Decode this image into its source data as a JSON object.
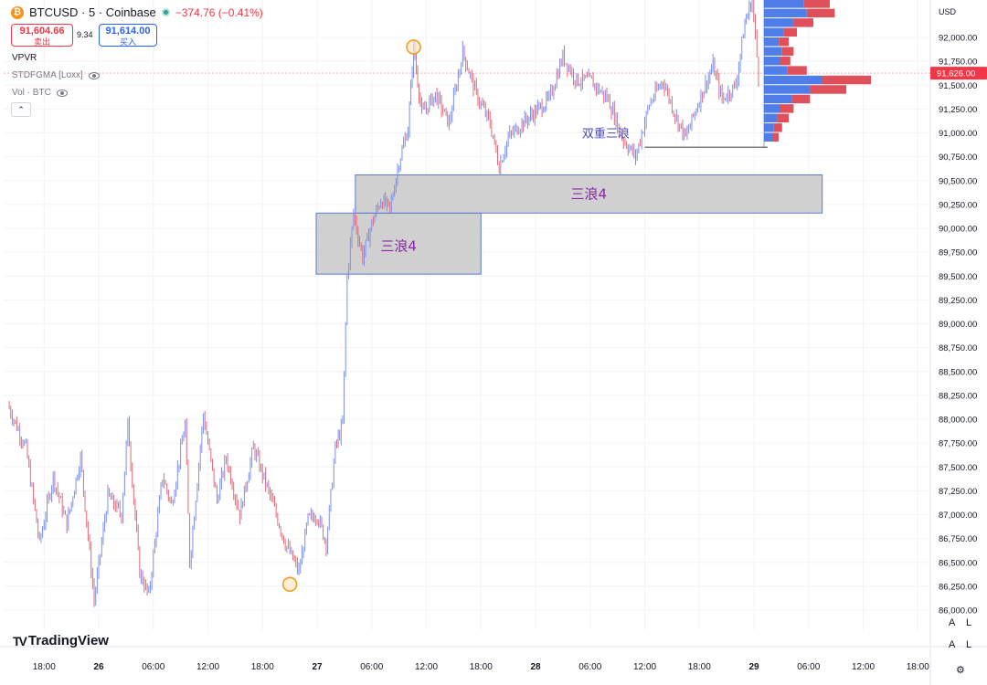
{
  "header": {
    "symbol": "BTCUSD · 5 · Coinbase",
    "coin_glyph": "₿",
    "change": "−374.76 (−0.41%)",
    "sell_price": "91,604.66",
    "sell_label": "卖出",
    "spread": "9.34",
    "buy_price": "91,614.00",
    "buy_label": "买入"
  },
  "indicators": {
    "vpvr": "VPVR",
    "stdfgma": "STDFGMA [Loxx]",
    "vol": "Vol · BTC"
  },
  "collapse_glyph": "⌃",
  "currency": "USD",
  "logo_text": "TradingView",
  "logo_glyph": "TV",
  "scale_btn_a": "A",
  "scale_btn_l": "L",
  "settings_glyph": "⚙",
  "colors": {
    "up": "#7b8ff0",
    "down": "#e06b7a",
    "box_fill": "#c8c8c8",
    "box_border": "#5b7bd5",
    "box_text": "#8e24aa",
    "wave_text": "#4a4ab8",
    "price_tag": "#f23645",
    "marker": "#f29b29",
    "vp_up": "#4f7ee8",
    "vp_down": "#e0505a"
  },
  "chart_data": {
    "type": "candlestick",
    "symbol": "BTCUSD",
    "interval": "5",
    "exchange": "Coinbase",
    "y_ticks": [
      86000,
      86250,
      86500,
      86750,
      87000,
      87250,
      87500,
      87750,
      88000,
      88250,
      88500,
      88750,
      89000,
      89250,
      89500,
      89750,
      90000,
      90250,
      90500,
      90750,
      91000,
      91250,
      91500,
      91750,
      92000
    ],
    "y_tick_labels": [
      "86,000.00",
      "86,250.00",
      "86,500.00",
      "86,750.00",
      "87,000.00",
      "87,250.00",
      "87,500.00",
      "87,750.00",
      "88,000.00",
      "88,250.00",
      "88,500.00",
      "88,750.00",
      "89,000.00",
      "89,250.00",
      "89,500.00",
      "89,750.00",
      "90,000.00",
      "90,250.00",
      "90,500.00",
      "90,750.00",
      "91,000.00",
      "91,250.00",
      "91,500.00",
      "91,750.00",
      "92,000.00"
    ],
    "ylim": [
      85850,
      92350
    ],
    "x_ticks": [
      {
        "label": "18:00",
        "day": 25,
        "hour": 18,
        "bold": false
      },
      {
        "label": "26",
        "day": 26,
        "hour": 0,
        "bold": true
      },
      {
        "label": "06:00",
        "day": 26,
        "hour": 6,
        "bold": false
      },
      {
        "label": "12:00",
        "day": 26,
        "hour": 12,
        "bold": false
      },
      {
        "label": "18:00",
        "day": 26,
        "hour": 18,
        "bold": false
      },
      {
        "label": "27",
        "day": 27,
        "hour": 0,
        "bold": true
      },
      {
        "label": "06:00",
        "day": 27,
        "hour": 6,
        "bold": false
      },
      {
        "label": "12:00",
        "day": 27,
        "hour": 12,
        "bold": false
      },
      {
        "label": "18:00",
        "day": 27,
        "hour": 18,
        "bold": false
      },
      {
        "label": "28",
        "day": 28,
        "hour": 0,
        "bold": true
      },
      {
        "label": "06:00",
        "day": 28,
        "hour": 6,
        "bold": false
      },
      {
        "label": "12:00",
        "day": 28,
        "hour": 12,
        "bold": false
      },
      {
        "label": "18:00",
        "day": 28,
        "hour": 18,
        "bold": false
      },
      {
        "label": "29",
        "day": 29,
        "hour": 0,
        "bold": true
      },
      {
        "label": "06:00",
        "day": 29,
        "hour": 6,
        "bold": false
      },
      {
        "label": "12:00",
        "day": 29,
        "hour": 12,
        "bold": false
      },
      {
        "label": "18:00",
        "day": 29,
        "hour": 18,
        "bold": false
      }
    ],
    "price_path": [
      [
        25,
        14.0,
        88150
      ],
      [
        25,
        16.0,
        87700
      ],
      [
        25,
        17.5,
        86700
      ],
      [
        25,
        19.0,
        87400
      ],
      [
        25,
        20.5,
        86900
      ],
      [
        25,
        22.0,
        87600
      ],
      [
        25,
        23.5,
        86100
      ],
      [
        26,
        1.0,
        87200
      ],
      [
        26,
        2.5,
        87000
      ],
      [
        26,
        3.2,
        87950
      ],
      [
        26,
        4.5,
        86400
      ],
      [
        26,
        5.5,
        86150
      ],
      [
        26,
        7.0,
        87400
      ],
      [
        26,
        8.0,
        87100
      ],
      [
        26,
        9.5,
        87950
      ],
      [
        26,
        10.0,
        86500
      ],
      [
        26,
        11.5,
        88050
      ],
      [
        26,
        13.0,
        87150
      ],
      [
        26,
        14.0,
        87600
      ],
      [
        26,
        15.5,
        87000
      ],
      [
        26,
        17.0,
        87700
      ],
      [
        26,
        19.0,
        87150
      ],
      [
        26,
        20.5,
        86700
      ],
      [
        26,
        22.0,
        86400
      ],
      [
        26,
        23.0,
        86950
      ],
      [
        26,
        24.0,
        87000
      ],
      [
        27,
        1.0,
        86700
      ],
      [
        27,
        2.0,
        87700
      ],
      [
        27,
        2.8,
        87950
      ],
      [
        27,
        3.3,
        89500
      ],
      [
        27,
        4.0,
        90150
      ],
      [
        27,
        5.0,
        89700
      ],
      [
        27,
        6.0,
        90050
      ],
      [
        27,
        7.0,
        90300
      ],
      [
        27,
        8.0,
        90200
      ],
      [
        27,
        9.0,
        90700
      ],
      [
        27,
        10.0,
        91050
      ],
      [
        27,
        10.6,
        91900
      ],
      [
        27,
        11.5,
        91200
      ],
      [
        27,
        13.0,
        91400
      ],
      [
        27,
        14.5,
        91100
      ],
      [
        27,
        16.0,
        91850
      ],
      [
        27,
        17.5,
        91400
      ],
      [
        27,
        19.0,
        91100
      ],
      [
        27,
        20.0,
        90650
      ],
      [
        27,
        21.0,
        90950
      ],
      [
        27,
        22.5,
        91100
      ],
      [
        28,
        1.5,
        91350
      ],
      [
        28,
        3.0,
        91800
      ],
      [
        28,
        4.5,
        91550
      ],
      [
        28,
        6.0,
        91550
      ],
      [
        28,
        8.0,
        91350
      ],
      [
        28,
        9.5,
        90950
      ],
      [
        28,
        11.0,
        90750
      ],
      [
        28,
        12.5,
        91300
      ],
      [
        28,
        14.0,
        91550
      ],
      [
        28,
        15.5,
        91150
      ],
      [
        28,
        16.5,
        90950
      ],
      [
        28,
        18.0,
        91350
      ],
      [
        28,
        19.5,
        91700
      ],
      [
        28,
        20.5,
        91350
      ],
      [
        28,
        22.0,
        91500
      ],
      [
        28,
        23.0,
        92150
      ],
      [
        28,
        23.8,
        92400
      ],
      [
        29,
        0.5,
        91600
      ]
    ],
    "zones": [
      {
        "label": "三浪4",
        "x_from": [
          26,
          23.9
        ],
        "x_to": [
          27,
          18.0
        ],
        "y_from": 89520,
        "y_to": 90160
      },
      {
        "label": "三浪4",
        "x_from": [
          27,
          4.2
        ],
        "x_to": [
          29,
          7.5
        ],
        "y_from": 90160,
        "y_to": 90560
      }
    ],
    "annotations": [
      {
        "text": "双重三浪",
        "at": [
          28,
          2.5
        ],
        "price": 91000
      }
    ],
    "horizontal_segment": {
      "from": [
        28,
        12.0
      ],
      "to": [
        29,
        1.5
      ],
      "price": 90850
    },
    "markers": [
      {
        "at": [
          27,
          10.6
        ],
        "price": 91900
      },
      {
        "at": [
          26,
          21.0
        ],
        "price": 86270
      }
    ],
    "last_price": {
      "price": 91626,
      "label": "91,626.00"
    },
    "volume_profile": [
      {
        "price": 91550,
        "up": 35,
        "down": 30
      },
      {
        "price": 91450,
        "up": 28,
        "down": 22
      },
      {
        "price": 91350,
        "up": 17,
        "down": 11
      },
      {
        "price": 91250,
        "up": 10,
        "down": 8
      },
      {
        "price": 91150,
        "up": 8,
        "down": 7
      },
      {
        "price": 91050,
        "up": 6,
        "down": 5
      },
      {
        "price": 90950,
        "up": 5,
        "down": 4
      },
      {
        "price": 91650,
        "up": 14,
        "down": 12
      },
      {
        "price": 91750,
        "up": 10,
        "down": 6
      },
      {
        "price": 91850,
        "up": 11,
        "down": 7
      },
      {
        "price": 91950,
        "up": 9,
        "down": 6
      },
      {
        "price": 92050,
        "up": 12,
        "down": 8
      },
      {
        "price": 92150,
        "up": 18,
        "down": 12
      },
      {
        "price": 92250,
        "up": 26,
        "down": 17
      },
      {
        "price": 92350,
        "up": 24,
        "down": 16
      }
    ]
  }
}
